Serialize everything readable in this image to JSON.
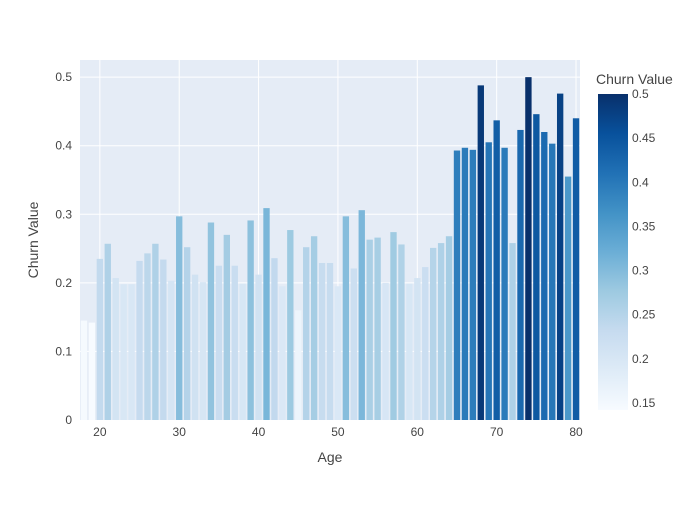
{
  "chart_data": {
    "type": "bar",
    "title": "",
    "xlabel": "Age",
    "ylabel": "Churn Value",
    "x": [
      18,
      19,
      20,
      21,
      22,
      23,
      24,
      25,
      26,
      27,
      28,
      29,
      30,
      31,
      32,
      33,
      34,
      35,
      36,
      37,
      38,
      39,
      40,
      41,
      42,
      43,
      44,
      45,
      46,
      47,
      48,
      49,
      50,
      51,
      52,
      53,
      54,
      55,
      56,
      57,
      58,
      59,
      60,
      61,
      62,
      63,
      64,
      65,
      66,
      67,
      68,
      69,
      70,
      71,
      72,
      73,
      74,
      75,
      76,
      77,
      78,
      79,
      80
    ],
    "values": [
      0.145,
      0.142,
      0.235,
      0.257,
      0.207,
      0.198,
      0.198,
      0.232,
      0.243,
      0.257,
      0.234,
      0.203,
      0.297,
      0.252,
      0.212,
      0.201,
      0.288,
      0.225,
      0.27,
      0.225,
      0.199,
      0.291,
      0.212,
      0.309,
      0.236,
      0.195,
      0.277,
      0.16,
      0.252,
      0.268,
      0.229,
      0.229,
      0.195,
      0.297,
      0.221,
      0.306,
      0.263,
      0.266,
      0.2,
      0.274,
      0.256,
      0.199,
      0.207,
      0.223,
      0.251,
      0.258,
      0.268,
      0.393,
      0.397,
      0.394,
      0.488,
      0.405,
      0.437,
      0.397,
      0.258,
      0.423,
      0.5,
      0.446,
      0.42,
      0.403,
      0.476,
      0.355,
      0.44
    ],
    "xlim": [
      17.5,
      80.5
    ],
    "ylim": [
      0,
      0.525
    ],
    "x_ticks": [
      20,
      30,
      40,
      50,
      60,
      70,
      80
    ],
    "y_ticks": [
      0,
      0.1,
      0.2,
      0.3,
      0.4,
      0.5
    ],
    "y_tick_labels": [
      "0",
      "0.1",
      "0.2",
      "0.3",
      "0.4",
      "0.5"
    ],
    "colorbar": {
      "title": "Churn Value",
      "min": 0.142,
      "max": 0.5,
      "ticks": [
        0.15,
        0.2,
        0.25,
        0.3,
        0.35,
        0.4,
        0.45,
        0.5
      ],
      "tick_labels": [
        "0.15",
        "0.2",
        "0.25",
        "0.3",
        "0.35",
        "0.4",
        "0.45",
        "0.5"
      ],
      "colorscale": [
        "#f7fbff",
        "#deebf7",
        "#c6dbef",
        "#9ecae1",
        "#6baed6",
        "#4292c6",
        "#2171b5",
        "#08519c",
        "#08306b"
      ]
    },
    "grid": true,
    "plot_background": "#e5ecf6"
  }
}
